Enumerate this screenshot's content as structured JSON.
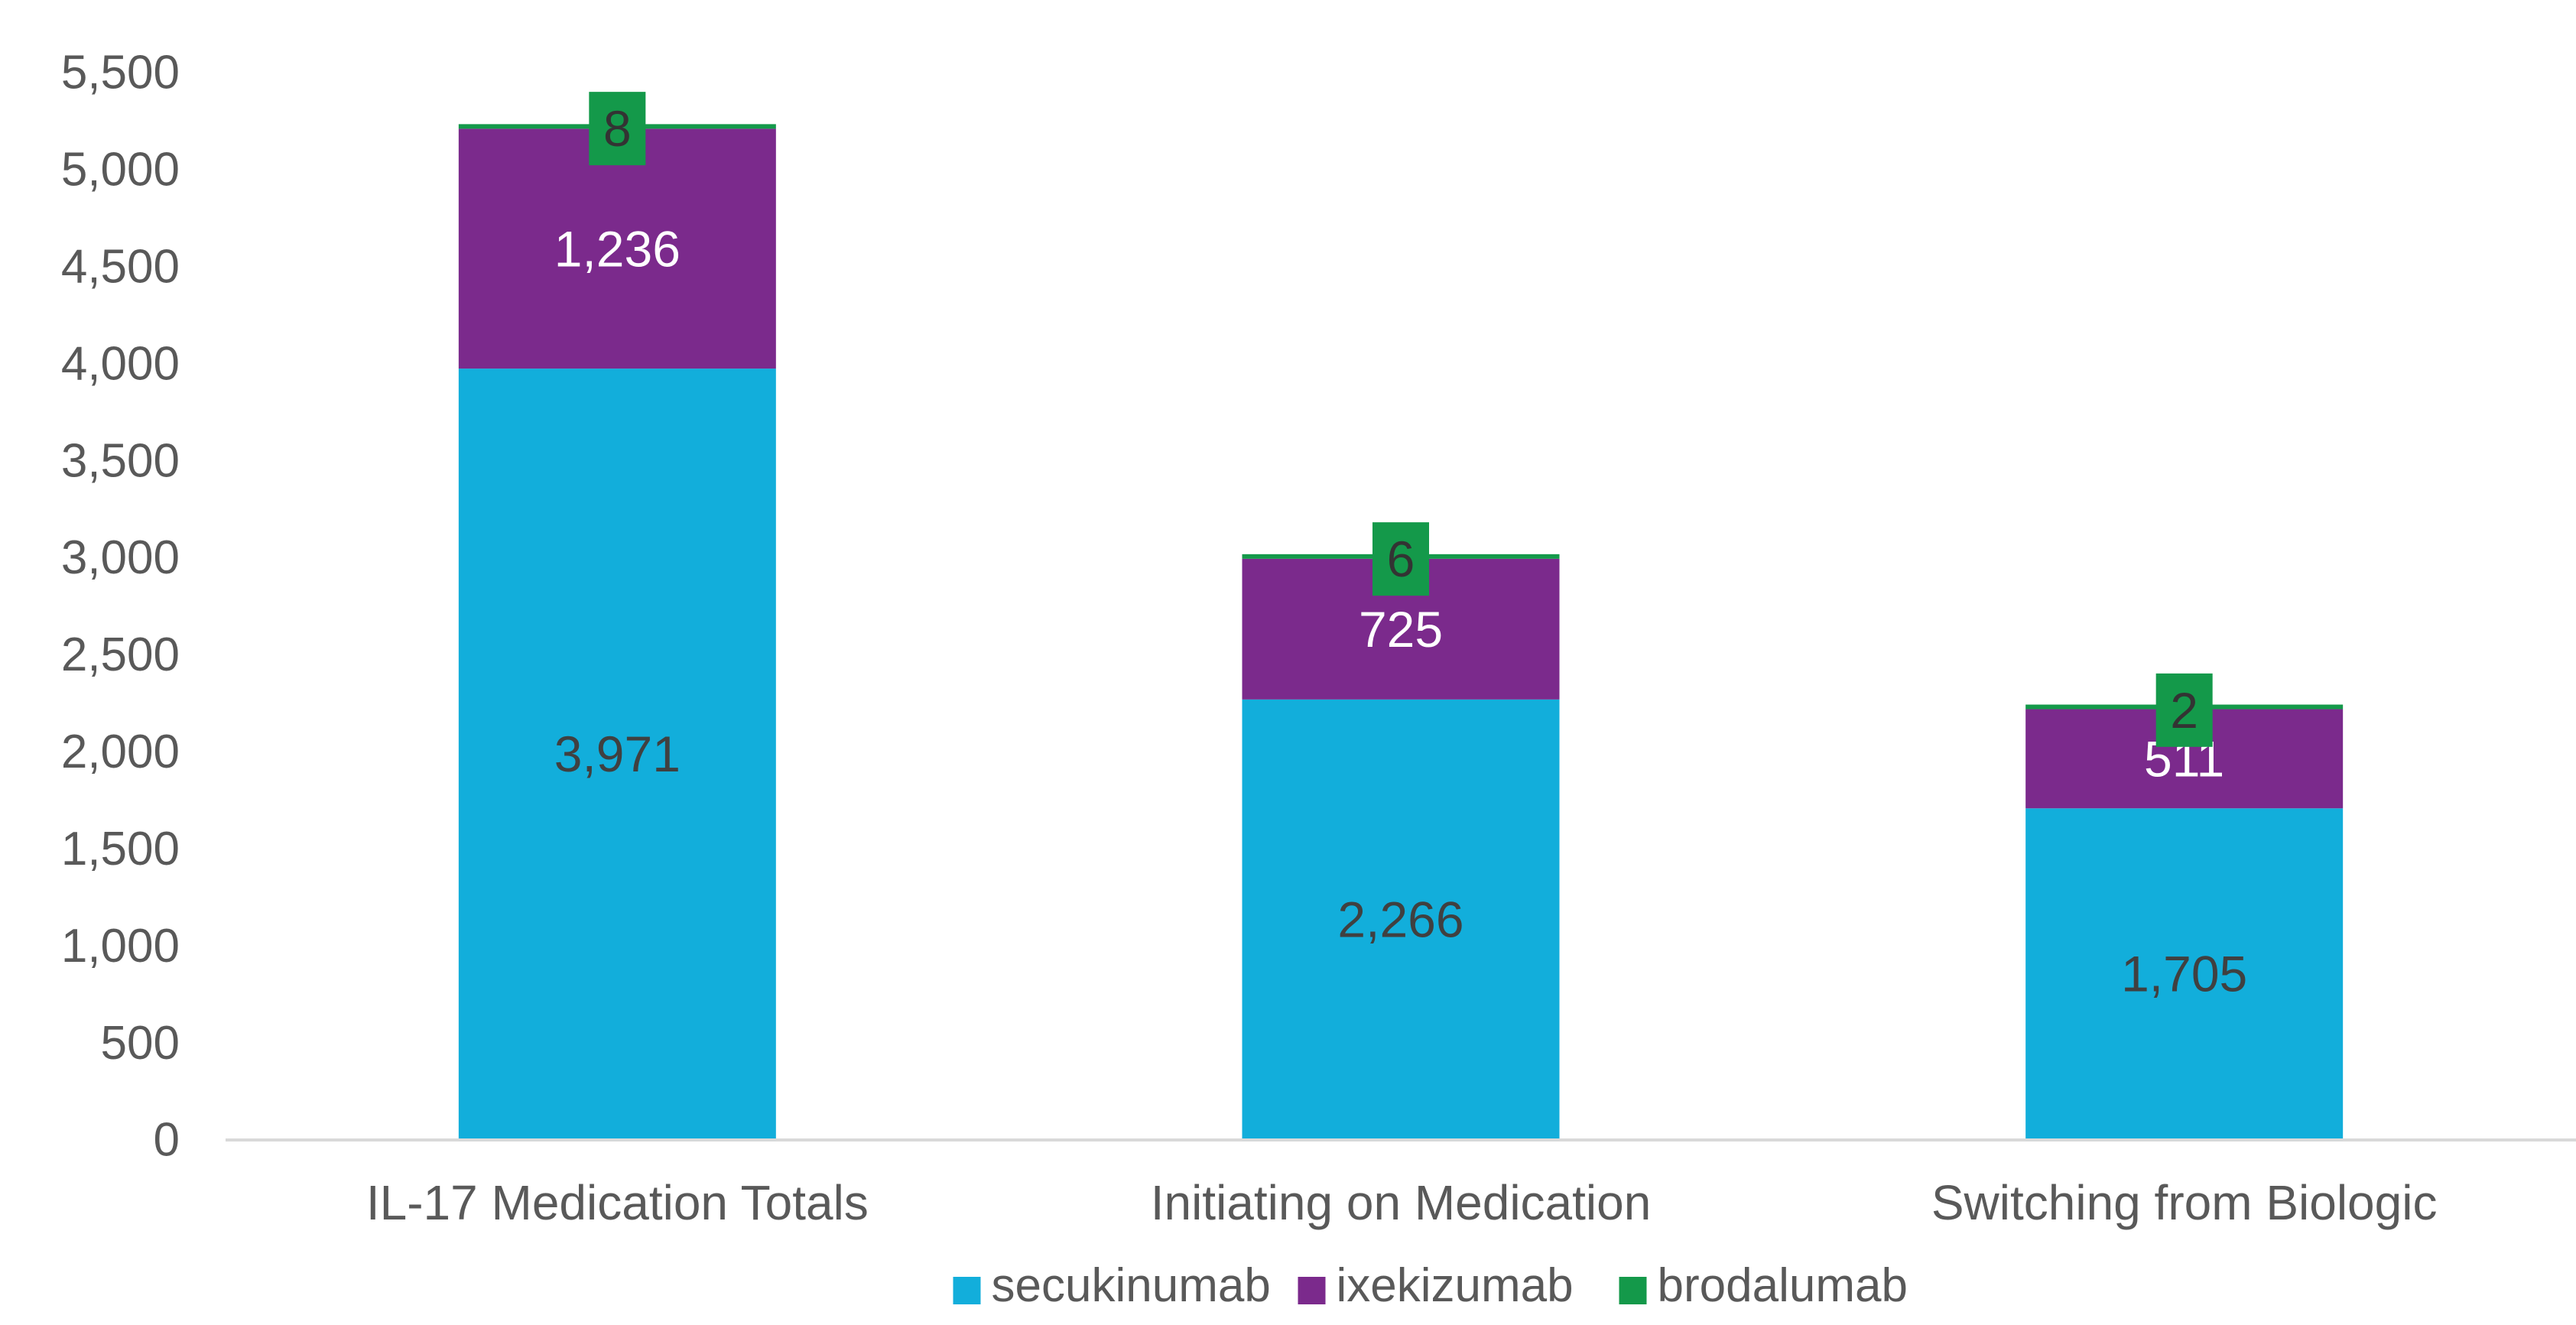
{
  "chart_data": {
    "type": "bar",
    "stacked": true,
    "title": "",
    "xlabel": "",
    "ylabel": "",
    "ylim": [
      0,
      5500
    ],
    "y_ticks": [
      0,
      500,
      1000,
      1500,
      2000,
      2500,
      3000,
      3500,
      4000,
      4500,
      5000,
      5500
    ],
    "y_tick_labels": [
      "0",
      "500",
      "1,000",
      "1,500",
      "2,000",
      "2,500",
      "3,000",
      "3,500",
      "4,000",
      "4,500",
      "5,000",
      "5,500"
    ],
    "categories": [
      "IL-17 Medication Totals",
      "Initiating on Medication",
      "Switching from Biologic"
    ],
    "series": [
      {
        "name": "secukinumab",
        "color": "#12AEDB",
        "values": [
          3971,
          2266,
          1705
        ],
        "labels": [
          "3,971",
          "2,266",
          "1,705"
        ],
        "label_color": "#404040",
        "label_style": "plain"
      },
      {
        "name": "ixekizumab",
        "color": "#7B2A8C",
        "values": [
          1236,
          725,
          511
        ],
        "labels": [
          "1,236",
          "725",
          "511"
        ],
        "label_color": "#ffffff",
        "label_style": "plain"
      },
      {
        "name": "brodalumab",
        "color": "#14994A",
        "values": [
          8,
          6,
          2
        ],
        "labels": [
          "8",
          "6",
          "2"
        ],
        "label_color": "#333333",
        "label_style": "box"
      }
    ],
    "grid": false,
    "legend_position": "bottom",
    "axis_color": "#D9D9D9",
    "tick_label_color": "#595959"
  }
}
